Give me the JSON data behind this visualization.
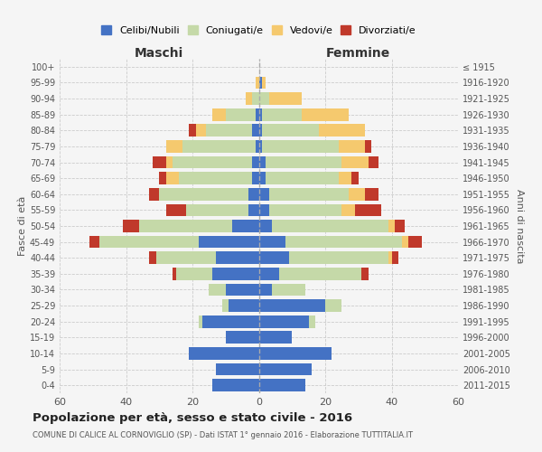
{
  "age_groups": [
    "0-4",
    "5-9",
    "10-14",
    "15-19",
    "20-24",
    "25-29",
    "30-34",
    "35-39",
    "40-44",
    "45-49",
    "50-54",
    "55-59",
    "60-64",
    "65-69",
    "70-74",
    "75-79",
    "80-84",
    "85-89",
    "90-94",
    "95-99",
    "100+"
  ],
  "birth_years": [
    "2011-2015",
    "2006-2010",
    "2001-2005",
    "1996-2000",
    "1991-1995",
    "1986-1990",
    "1981-1985",
    "1976-1980",
    "1971-1975",
    "1966-1970",
    "1961-1965",
    "1956-1960",
    "1951-1955",
    "1946-1950",
    "1941-1945",
    "1936-1940",
    "1931-1935",
    "1926-1930",
    "1921-1925",
    "1916-1920",
    "≤ 1915"
  ],
  "male": {
    "celibi": [
      14,
      13,
      21,
      10,
      17,
      9,
      10,
      14,
      13,
      18,
      8,
      3,
      3,
      2,
      2,
      1,
      2,
      1,
      0,
      0,
      0
    ],
    "coniugati": [
      0,
      0,
      0,
      0,
      1,
      2,
      5,
      11,
      18,
      30,
      28,
      19,
      27,
      22,
      24,
      22,
      14,
      9,
      2,
      0,
      0
    ],
    "vedovi": [
      0,
      0,
      0,
      0,
      0,
      0,
      0,
      0,
      0,
      0,
      0,
      0,
      0,
      4,
      2,
      5,
      3,
      4,
      2,
      1,
      0
    ],
    "divorziati": [
      0,
      0,
      0,
      0,
      0,
      0,
      0,
      1,
      2,
      3,
      5,
      6,
      3,
      2,
      4,
      0,
      2,
      0,
      0,
      0,
      0
    ]
  },
  "female": {
    "nubili": [
      14,
      16,
      22,
      10,
      15,
      20,
      4,
      6,
      9,
      8,
      4,
      3,
      3,
      2,
      2,
      1,
      1,
      1,
      0,
      1,
      0
    ],
    "coniugate": [
      0,
      0,
      0,
      0,
      2,
      5,
      10,
      25,
      30,
      35,
      35,
      22,
      24,
      22,
      23,
      23,
      17,
      12,
      3,
      0,
      0
    ],
    "vedove": [
      0,
      0,
      0,
      0,
      0,
      0,
      0,
      0,
      1,
      2,
      2,
      4,
      5,
      4,
      8,
      8,
      14,
      14,
      10,
      1,
      0
    ],
    "divorziate": [
      0,
      0,
      0,
      0,
      0,
      0,
      0,
      2,
      2,
      4,
      3,
      8,
      4,
      2,
      3,
      2,
      0,
      0,
      0,
      0,
      0
    ]
  },
  "colors": {
    "celibi": "#4472c4",
    "coniugati": "#c5d9a8",
    "vedovi": "#f5c96e",
    "divorziati": "#c0392b"
  },
  "title": "Popolazione per età, sesso e stato civile - 2016",
  "subtitle": "COMUNE DI CALICE AL CORNOVIGLIO (SP) - Dati ISTAT 1° gennaio 2016 - Elaborazione TUTTITALIA.IT",
  "xlabel_left": "Maschi",
  "xlabel_right": "Femmine",
  "ylabel_left": "Fasce di età",
  "ylabel_right": "Anni di nascita",
  "xlim": 60,
  "legend_labels": [
    "Celibi/Nubili",
    "Coniugati/e",
    "Vedovi/e",
    "Divorziati/e"
  ],
  "background_color": "#f5f5f5"
}
